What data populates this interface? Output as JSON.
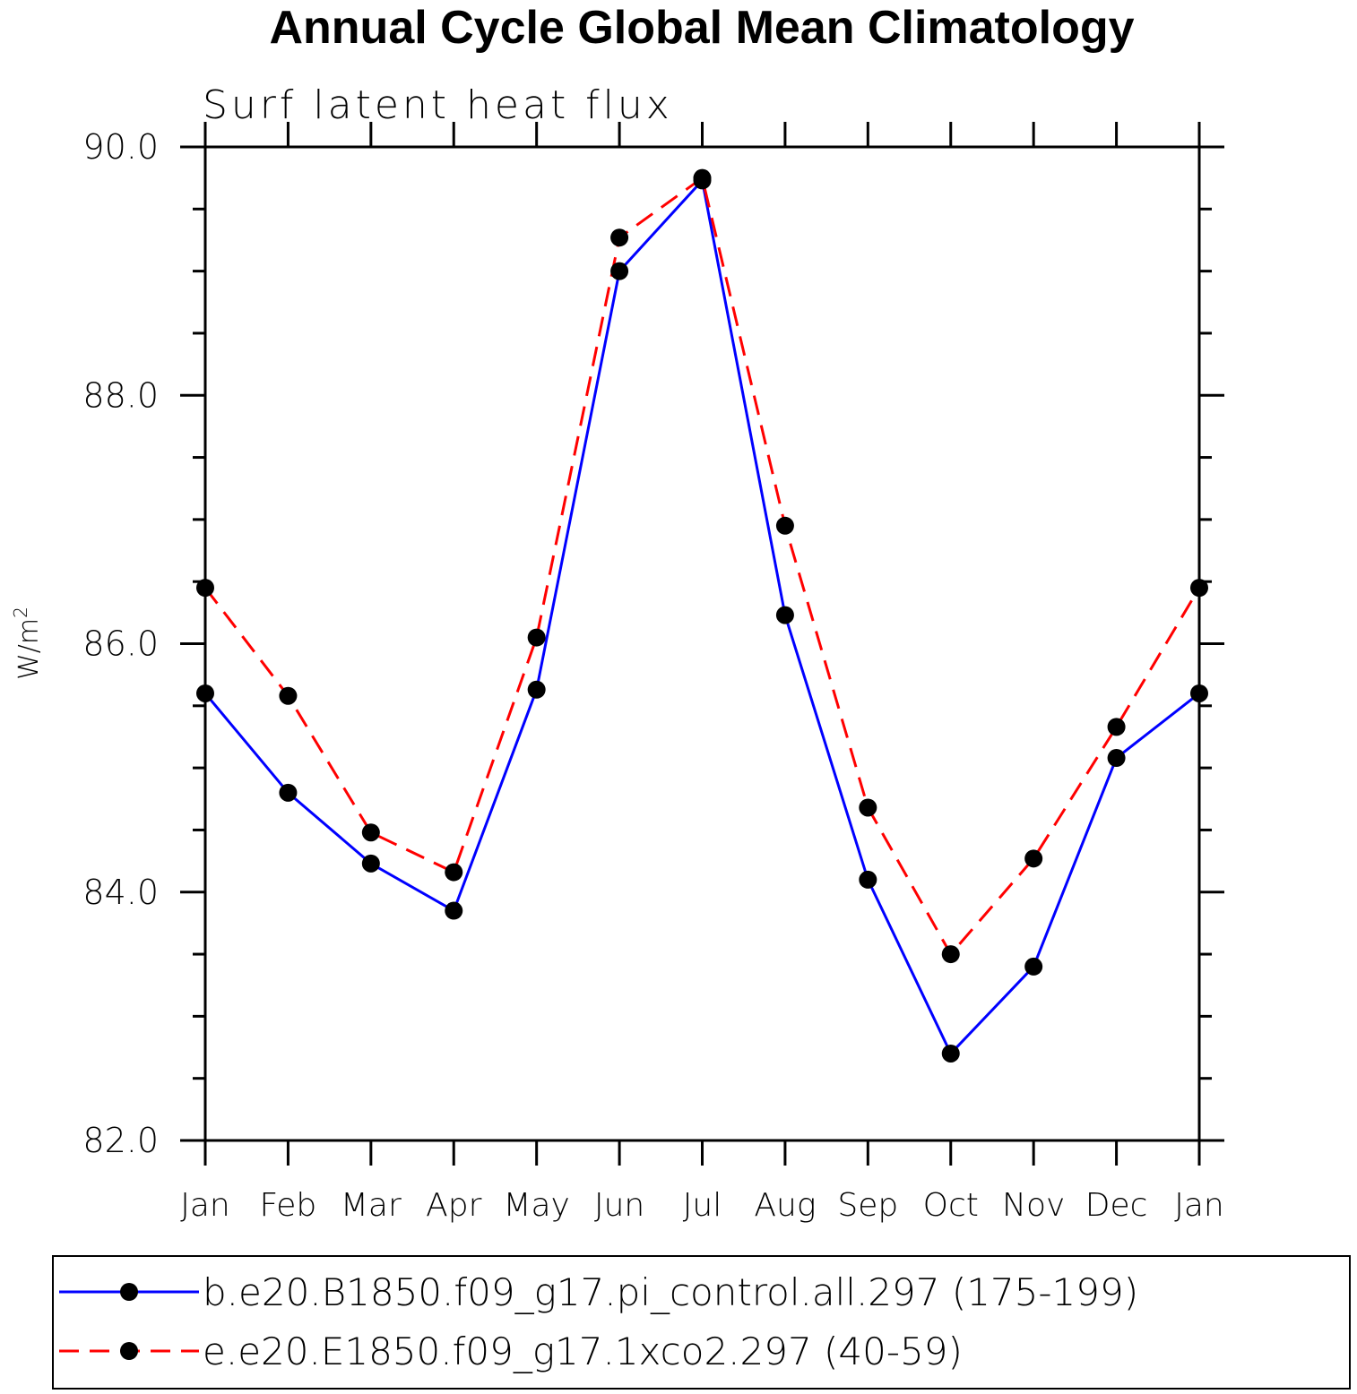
{
  "chart_data": {
    "type": "line",
    "title": "Annual Cycle Global Mean Climatology",
    "subtitle": "Surf latent heat flux",
    "ylabel": "W/m",
    "ylabel_sup": "2",
    "categories": [
      "Jan",
      "Feb",
      "Mar",
      "Apr",
      "May",
      "Jun",
      "Jul",
      "Aug",
      "Sep",
      "Oct",
      "Nov",
      "Dec",
      "Jan"
    ],
    "ylim": [
      82.0,
      90.0
    ],
    "yticks": [
      82.0,
      84.0,
      86.0,
      88.0,
      90.0
    ],
    "ytick_labels": [
      "82.0",
      "84.0",
      "86.0",
      "88.0",
      "90.0"
    ],
    "y_minor_step": 0.5,
    "grid": false,
    "legend_position": "bottom",
    "series": [
      {
        "name": "b.e20.B1850.f09_g17.pi_control.all.297 (175-199)",
        "color": "#0000ff",
        "dash": "solid",
        "marker": "filled-circle",
        "values": [
          85.6,
          84.8,
          84.23,
          83.85,
          85.63,
          89.0,
          89.73,
          86.23,
          84.1,
          82.7,
          83.4,
          85.08,
          85.6
        ]
      },
      {
        "name": "e.e20.E1850.f09_g17.1xco2.297 (40-59)",
        "color": "#ff0000",
        "dash": "dashed",
        "marker": "filled-circle",
        "values": [
          86.45,
          85.58,
          84.48,
          84.16,
          86.05,
          89.27,
          89.75,
          86.95,
          84.68,
          83.5,
          84.27,
          85.33,
          86.45
        ]
      }
    ]
  }
}
